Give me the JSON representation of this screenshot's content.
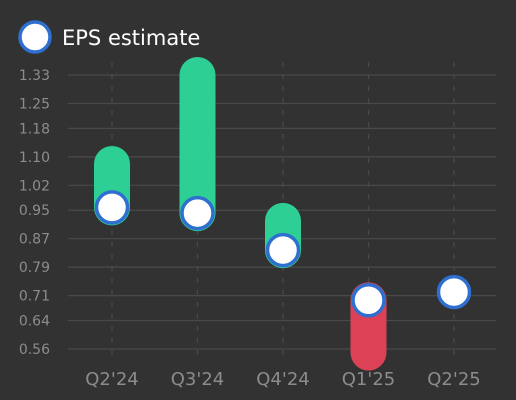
{
  "chart_data": {
    "type": "bar",
    "title": "",
    "xlabel": "",
    "ylabel": "",
    "legend": {
      "label": "EPS estimate",
      "placement": "top-left"
    },
    "categories": [
      "Q2'24",
      "Q3'24",
      "Q4'24",
      "Q1'25",
      "Q2'25"
    ],
    "estimate": [
      0.958,
      0.942,
      0.838,
      0.697,
      0.72
    ],
    "actual": [
      1.08,
      1.33,
      0.92,
      0.55,
      null
    ],
    "y_ticks": [
      "0.56",
      "0.64",
      "0.71",
      "0.79",
      "0.87",
      "0.95",
      "1.02",
      "1.10",
      "1.18",
      "1.25",
      "1.33"
    ],
    "ylim": [
      0.52,
      1.37
    ],
    "grid": {
      "horizontal": true,
      "vertical_dashed": true
    },
    "colors": {
      "background": "#323232",
      "beat": "#2ecf95",
      "miss": "#dc4155",
      "estimate_fill": "#ffffff",
      "estimate_stroke": "#2f6fd0",
      "grid": "#4a4a4a",
      "tick_text": "#8c8c8c",
      "legend_text": "#ffffff"
    }
  }
}
